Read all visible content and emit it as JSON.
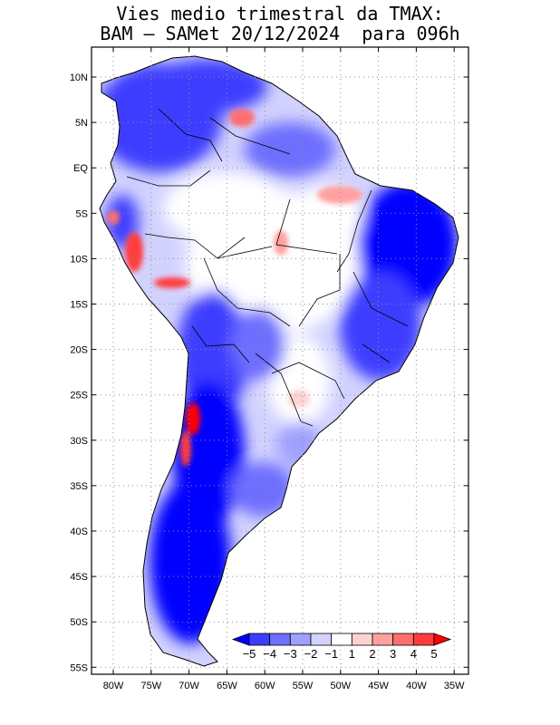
{
  "title_line1": "Vies medio trimestral da TMAX:",
  "title_line2": "BAM – SAMet 20/12/2024  para 096h",
  "lat_labels": [
    "10N",
    "5N",
    "EQ",
    "5S",
    "10S",
    "15S",
    "20S",
    "25S",
    "30S",
    "35S",
    "40S",
    "45S",
    "50S",
    "55S"
  ],
  "lon_labels": [
    "80W",
    "75W",
    "70W",
    "65W",
    "60W",
    "55W",
    "50W",
    "45W",
    "40W",
    "35W"
  ],
  "colorbar": {
    "labels": [
      "−5",
      "−4",
      "−3",
      "−2",
      "−1",
      "1",
      "2",
      "3",
      "4",
      "5"
    ],
    "colors": [
      "#0000ff",
      "#3c3cff",
      "#6e6eff",
      "#a0a0ff",
      "#d2d2ff",
      "#ffffff",
      "#ffd2d2",
      "#ffa0a0",
      "#ff6e6e",
      "#ff3c3c",
      "#ff0000"
    ]
  },
  "colors": {
    "ocean": "#ffffff",
    "grid": "#909090",
    "border": "#000000"
  }
}
